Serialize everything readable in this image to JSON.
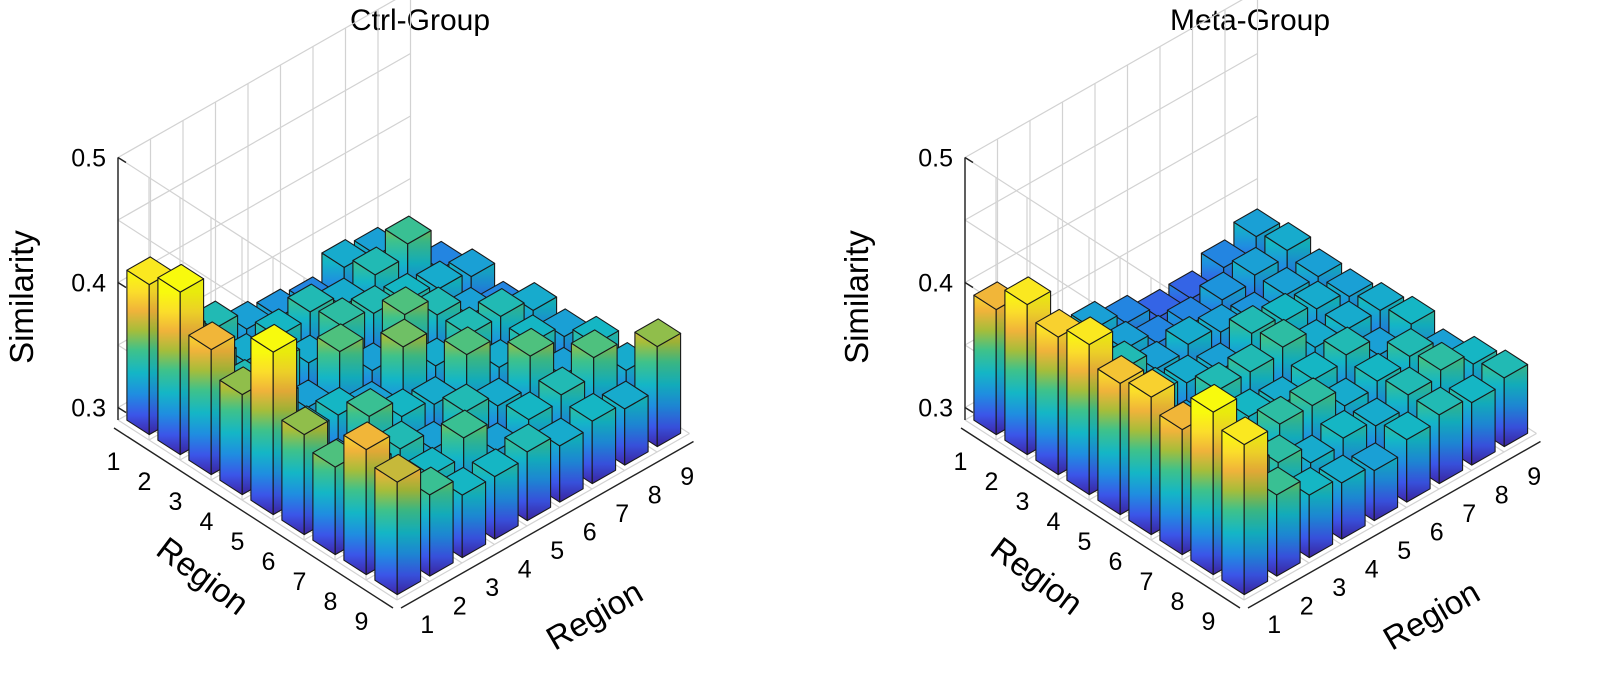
{
  "chart_data": [
    {
      "type": "bar3d",
      "title": "Ctrl-Group",
      "xlabel": "Region",
      "ylabel": "Region",
      "zlabel": "Similarity",
      "x_ticks": [
        "1",
        "2",
        "3",
        "4",
        "5",
        "6",
        "7",
        "8",
        "9"
      ],
      "y_ticks": [
        "1",
        "2",
        "3",
        "4",
        "5",
        "6",
        "7",
        "8",
        "9"
      ],
      "z_ticks": [
        "0.3",
        "0.4",
        "0.5"
      ],
      "zlim": [
        0.29,
        0.5
      ],
      "grid": true,
      "colormap": "parula",
      "values": [
        [
          0.41,
          0.355,
          0.345,
          0.33,
          0.325,
          0.32,
          0.335,
          0.33,
          0.31
        ],
        [
          0.42,
          0.35,
          0.335,
          0.34,
          0.345,
          0.335,
          0.345,
          0.355,
          0.32
        ],
        [
          0.39,
          0.345,
          0.35,
          0.335,
          0.35,
          0.345,
          0.34,
          0.335,
          0.33
        ],
        [
          0.37,
          0.35,
          0.33,
          0.36,
          0.33,
          0.36,
          0.345,
          0.33,
          0.32
        ],
        [
          0.42,
          0.34,
          0.34,
          0.33,
          0.365,
          0.335,
          0.345,
          0.345,
          0.335
        ],
        [
          0.37,
          0.33,
          0.355,
          0.34,
          0.335,
          0.36,
          0.335,
          0.34,
          0.33
        ],
        [
          0.36,
          0.345,
          0.345,
          0.33,
          0.345,
          0.335,
          0.36,
          0.33,
          0.34
        ],
        [
          0.39,
          0.335,
          0.34,
          0.355,
          0.33,
          0.34,
          0.345,
          0.36,
          0.335
        ],
        [
          0.38,
          0.355,
          0.34,
          0.34,
          0.345,
          0.335,
          0.34,
          0.335,
          0.37
        ]
      ]
    },
    {
      "type": "bar3d",
      "title": "Meta-Group",
      "xlabel": "Region",
      "ylabel": "Region",
      "zlabel": "Similarity",
      "x_ticks": [
        "1",
        "2",
        "3",
        "4",
        "5",
        "6",
        "7",
        "8",
        "9"
      ],
      "y_ticks": [
        "1",
        "2",
        "3",
        "4",
        "5",
        "6",
        "7",
        "8",
        "9"
      ],
      "z_ticks": [
        "0.3",
        "0.4",
        "0.5"
      ],
      "zlim": [
        0.29,
        0.5
      ],
      "grid": true,
      "colormap": "parula",
      "values": [
        [
          0.39,
          0.34,
          0.33,
          0.33,
          0.32,
          0.31,
          0.31,
          0.32,
          0.33
        ],
        [
          0.41,
          0.345,
          0.335,
          0.33,
          0.32,
          0.32,
          0.325,
          0.33,
          0.335
        ],
        [
          0.4,
          0.335,
          0.345,
          0.33,
          0.335,
          0.33,
          0.325,
          0.33,
          0.33
        ],
        [
          0.41,
          0.345,
          0.34,
          0.335,
          0.33,
          0.345,
          0.34,
          0.335,
          0.33
        ],
        [
          0.395,
          0.335,
          0.33,
          0.345,
          0.345,
          0.35,
          0.335,
          0.335,
          0.335
        ],
        [
          0.4,
          0.335,
          0.335,
          0.34,
          0.335,
          0.34,
          0.345,
          0.33,
          0.34
        ],
        [
          0.39,
          0.33,
          0.34,
          0.35,
          0.35,
          0.335,
          0.34,
          0.345,
          0.33
        ],
        [
          0.42,
          0.36,
          0.35,
          0.335,
          0.34,
          0.335,
          0.345,
          0.35,
          0.34
        ],
        [
          0.41,
          0.355,
          0.34,
          0.335,
          0.33,
          0.34,
          0.345,
          0.34,
          0.345
        ]
      ]
    }
  ]
}
